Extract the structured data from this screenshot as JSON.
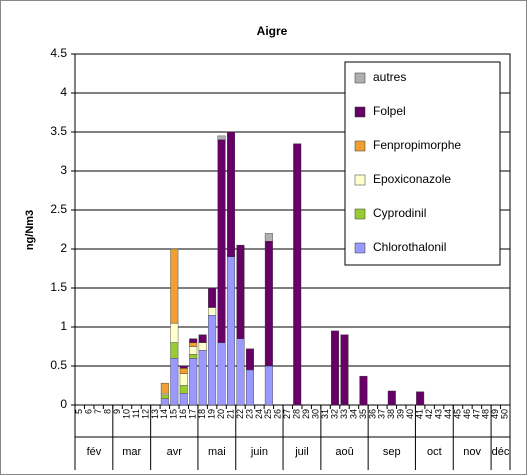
{
  "chart_data": {
    "type": "stacked_bar",
    "title": "Aigre",
    "y_label": "ng/Nm3",
    "categories": [
      "5",
      "6",
      "7",
      "8",
      "9",
      "10",
      "11",
      "12",
      "13",
      "14",
      "15",
      "16",
      "17",
      "18",
      "19",
      "20",
      "21",
      "22",
      "23",
      "24",
      "25",
      "26",
      "27",
      "28",
      "29",
      "30",
      "31",
      "32",
      "33",
      "34",
      "35",
      "36",
      "37",
      "38",
      "39",
      "40",
      "41",
      "42",
      "43",
      "44",
      "45",
      "46",
      "47",
      "48",
      "49",
      "50"
    ],
    "months": [
      "fév",
      "mar",
      "avr",
      "mai",
      "juin",
      "juil",
      "aoû",
      "sep",
      "oct",
      "nov",
      "déc"
    ],
    "series": [
      {
        "name": "Chlorothalonil",
        "color": "#9999ff",
        "values": [
          null,
          null,
          null,
          null,
          null,
          null,
          null,
          null,
          null,
          0.08,
          0.6,
          0.15,
          0.6,
          0.7,
          1.15,
          0.8,
          1.9,
          0.85,
          0.45,
          null,
          0.5,
          null,
          null,
          null,
          null,
          null,
          null,
          null,
          null,
          null,
          null,
          null,
          null,
          null,
          null,
          null,
          null,
          null,
          null,
          null,
          null,
          null,
          null,
          null,
          null,
          null
        ]
      },
      {
        "name": "Cyprodinil",
        "color": "#99cc33",
        "values": [
          null,
          null,
          null,
          null,
          null,
          null,
          null,
          null,
          null,
          0.05,
          0.2,
          0.1,
          0.05,
          null,
          null,
          null,
          null,
          null,
          null,
          null,
          null,
          null,
          null,
          null,
          null,
          null,
          null,
          null,
          null,
          null,
          null,
          null,
          null,
          null,
          null,
          null,
          null,
          null,
          null,
          null,
          null,
          null,
          null,
          null,
          null,
          null
        ]
      },
      {
        "name": "Epoxiconazole",
        "color": "#ffffcc",
        "values": [
          null,
          null,
          null,
          null,
          null,
          null,
          null,
          null,
          null,
          0.02,
          0.25,
          0.15,
          0.1,
          0.1,
          0.1,
          null,
          null,
          null,
          null,
          null,
          null,
          null,
          null,
          null,
          null,
          null,
          null,
          null,
          null,
          null,
          null,
          null,
          null,
          null,
          null,
          null,
          null,
          null,
          null,
          null,
          null,
          null,
          null,
          null,
          null,
          null
        ]
      },
      {
        "name": "Fenpropimorphe",
        "color": "#f0a030",
        "values": [
          null,
          null,
          null,
          null,
          null,
          null,
          null,
          null,
          null,
          0.13,
          0.95,
          0.07,
          0.05,
          null,
          null,
          null,
          null,
          null,
          null,
          null,
          null,
          null,
          null,
          null,
          null,
          null,
          null,
          null,
          null,
          null,
          null,
          null,
          null,
          null,
          null,
          null,
          null,
          null,
          null,
          null,
          null,
          null,
          null,
          null,
          null,
          null
        ]
      },
      {
        "name": "Folpel",
        "color": "#660066",
        "values": [
          null,
          null,
          null,
          null,
          null,
          null,
          null,
          null,
          null,
          null,
          null,
          0.03,
          0.05,
          0.1,
          0.25,
          2.6,
          1.6,
          1.2,
          0.27,
          null,
          1.6,
          null,
          null,
          3.35,
          null,
          null,
          null,
          0.95,
          0.9,
          null,
          0.37,
          null,
          null,
          0.18,
          null,
          null,
          0.17,
          null,
          null,
          null,
          null,
          null,
          null,
          null,
          null,
          null
        ]
      },
      {
        "name": "autres",
        "color": "#b0b0b0",
        "values": [
          null,
          null,
          null,
          null,
          null,
          null,
          null,
          null,
          null,
          null,
          null,
          null,
          null,
          null,
          null,
          0.05,
          null,
          null,
          null,
          null,
          0.1,
          null,
          null,
          null,
          null,
          null,
          null,
          null,
          null,
          null,
          null,
          null,
          null,
          null,
          null,
          null,
          null,
          null,
          null,
          null,
          null,
          null,
          null,
          null,
          null,
          null
        ]
      }
    ],
    "ylim": [
      0,
      4.5
    ],
    "yticks": [
      0,
      0.5,
      1,
      1.5,
      2,
      2.5,
      3,
      3.5,
      4,
      4.5
    ],
    "grid": true,
    "legend": "top-right"
  }
}
